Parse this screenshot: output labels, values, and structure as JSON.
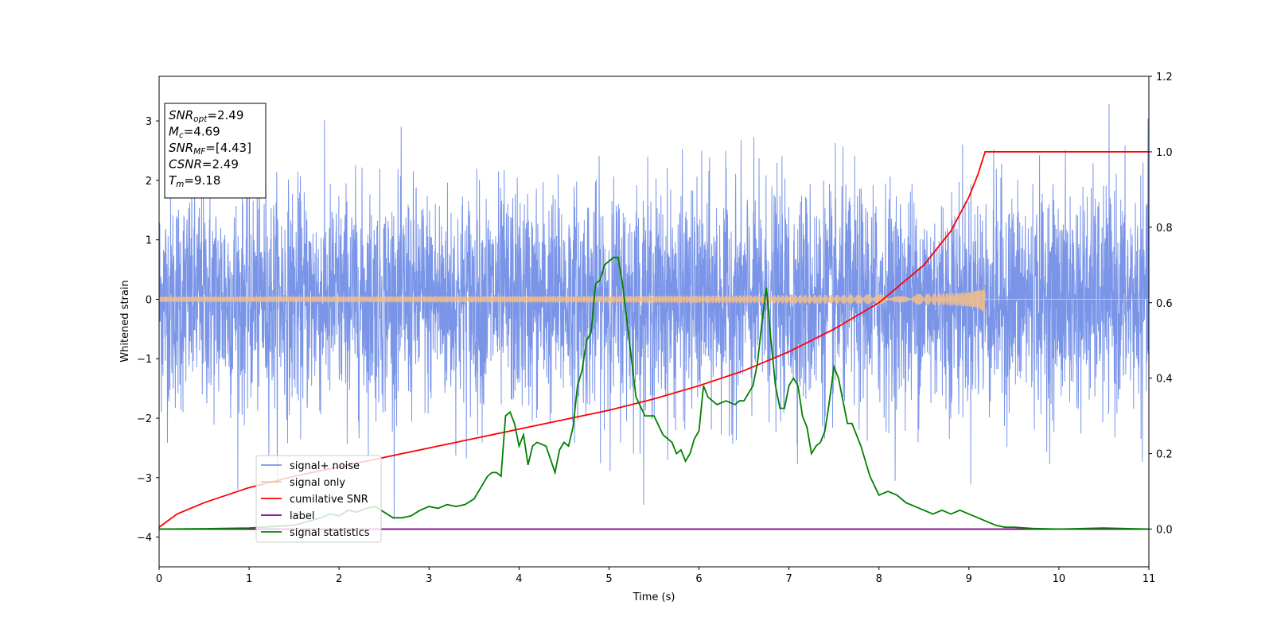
{
  "chart_data": {
    "type": "line",
    "xlabel": "Time (s)",
    "ylabel": "Whitened strain",
    "xlim": [
      0,
      11
    ],
    "ylim": [
      -4.5,
      3.75
    ],
    "y2lim": [
      -0.1,
      1.2
    ],
    "grid": false,
    "legend_position": "lower-left",
    "x_ticks": [
      "0",
      "1",
      "2",
      "3",
      "4",
      "5",
      "6",
      "7",
      "8",
      "9",
      "10",
      "11"
    ],
    "y_ticks": [
      "3",
      "2",
      "1",
      "0",
      "−1",
      "−2",
      "−3",
      "−4"
    ],
    "y_tick_values": [
      3,
      2,
      1,
      0,
      -1,
      -2,
      -3,
      -4
    ],
    "y2_ticks": [
      "1.2",
      "1.0",
      "0.8",
      "0.6",
      "0.4",
      "0.2",
      "0.0"
    ],
    "y2_tick_values": [
      1.2,
      1.0,
      0.8,
      0.6,
      0.4,
      0.2,
      0.0
    ],
    "info_box": [
      {
        "name": "SNR",
        "sub": "opt",
        "value": "=2.49"
      },
      {
        "name": "M",
        "sub": "c",
        "value": "=4.69"
      },
      {
        "name": "SNR",
        "sub": "MF",
        "value": "=[4.43]"
      },
      {
        "name": "CSNR",
        "sub": "",
        "value": "=2.49"
      },
      {
        "name": "T",
        "sub": "m",
        "value": "=9.18"
      }
    ],
    "series": [
      {
        "name": "signal+ noise",
        "color": "#6b89e6",
        "axis": "left",
        "kind": "noise",
        "description_values": {
          "range_min": -4.15,
          "range_max": 3.4,
          "typical_envelope": 1.6,
          "x_start": 0,
          "x_end": 11
        }
      },
      {
        "name": "signal only",
        "color": "#f5c08a",
        "axis": "left",
        "kind": "chirp",
        "x_start": 0,
        "x_merge": 9.18,
        "amplitude_at_merge": 0.22
      },
      {
        "name": "cumilative SNR",
        "color": "#ff0000",
        "axis": "right",
        "x": [
          0,
          0.2,
          0.5,
          1,
          1.5,
          2,
          2.5,
          3,
          3.5,
          4,
          4.5,
          5,
          5.5,
          6,
          6.5,
          7,
          7.5,
          8,
          8.5,
          8.8,
          9.0,
          9.1,
          9.18,
          9.5,
          10,
          11
        ],
        "values": [
          0.005,
          0.04,
          0.07,
          0.11,
          0.14,
          0.165,
          0.19,
          0.215,
          0.24,
          0.265,
          0.29,
          0.315,
          0.345,
          0.38,
          0.42,
          0.47,
          0.53,
          0.6,
          0.7,
          0.79,
          0.88,
          0.94,
          1.0,
          1.0,
          1.0,
          1.0
        ]
      },
      {
        "name": "label",
        "color": "#800080",
        "axis": "right",
        "x": [
          0,
          11
        ],
        "values": [
          0.0,
          0.0
        ]
      },
      {
        "name": "signal statistics",
        "color": "#008000",
        "axis": "right",
        "x": [
          0,
          0.5,
          1,
          1.5,
          1.8,
          1.9,
          2.0,
          2.1,
          2.2,
          2.3,
          2.4,
          2.5,
          2.6,
          2.7,
          2.8,
          2.9,
          3.0,
          3.1,
          3.2,
          3.3,
          3.4,
          3.5,
          3.6,
          3.65,
          3.7,
          3.75,
          3.8,
          3.85,
          3.9,
          3.95,
          4.0,
          4.05,
          4.1,
          4.15,
          4.2,
          4.3,
          4.4,
          4.45,
          4.5,
          4.55,
          4.6,
          4.65,
          4.7,
          4.75,
          4.8,
          4.85,
          4.9,
          4.95,
          5.0,
          5.05,
          5.1,
          5.15,
          5.2,
          5.3,
          5.4,
          5.5,
          5.6,
          5.7,
          5.75,
          5.8,
          5.85,
          5.9,
          5.95,
          6.0,
          6.05,
          6.1,
          6.2,
          6.3,
          6.4,
          6.45,
          6.5,
          6.55,
          6.6,
          6.65,
          6.7,
          6.75,
          6.8,
          6.85,
          6.9,
          6.95,
          7.0,
          7.05,
          7.1,
          7.15,
          7.2,
          7.25,
          7.3,
          7.35,
          7.4,
          7.45,
          7.5,
          7.55,
          7.6,
          7.65,
          7.7,
          7.8,
          7.9,
          8.0,
          8.1,
          8.2,
          8.3,
          8.4,
          8.5,
          8.6,
          8.7,
          8.8,
          8.9,
          9.0,
          9.1,
          9.2,
          9.3,
          9.4,
          9.5,
          9.7,
          10.0,
          10.5,
          11
        ],
        "values": [
          0.0,
          0.001,
          0.003,
          0.01,
          0.03,
          0.04,
          0.035,
          0.05,
          0.045,
          0.055,
          0.06,
          0.045,
          0.03,
          0.03,
          0.035,
          0.05,
          0.06,
          0.055,
          0.065,
          0.06,
          0.065,
          0.08,
          0.12,
          0.14,
          0.15,
          0.15,
          0.14,
          0.3,
          0.31,
          0.28,
          0.22,
          0.25,
          0.17,
          0.22,
          0.23,
          0.22,
          0.15,
          0.21,
          0.23,
          0.22,
          0.27,
          0.38,
          0.42,
          0.5,
          0.52,
          0.65,
          0.66,
          0.7,
          0.71,
          0.72,
          0.72,
          0.65,
          0.55,
          0.35,
          0.3,
          0.3,
          0.25,
          0.23,
          0.2,
          0.21,
          0.18,
          0.2,
          0.24,
          0.26,
          0.38,
          0.35,
          0.33,
          0.34,
          0.33,
          0.34,
          0.34,
          0.36,
          0.38,
          0.44,
          0.55,
          0.64,
          0.5,
          0.38,
          0.32,
          0.32,
          0.38,
          0.4,
          0.38,
          0.3,
          0.27,
          0.2,
          0.22,
          0.23,
          0.26,
          0.34,
          0.43,
          0.4,
          0.34,
          0.28,
          0.28,
          0.22,
          0.14,
          0.09,
          0.1,
          0.09,
          0.07,
          0.06,
          0.05,
          0.04,
          0.05,
          0.04,
          0.05,
          0.04,
          0.03,
          0.02,
          0.01,
          0.005,
          0.005,
          0.002,
          0.0,
          0.003,
          0.0
        ]
      }
    ]
  }
}
